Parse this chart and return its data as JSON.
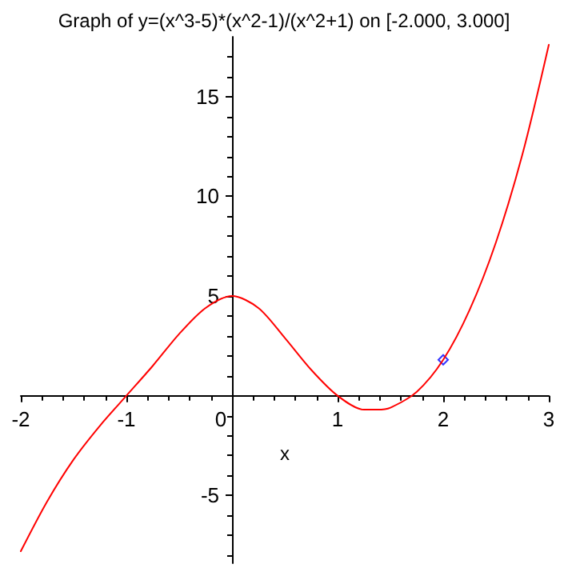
{
  "chart_data": {
    "type": "line",
    "title": "Graph of y=(x^3-5)*(x^2-1)/(x^2+1) on [-2.000, 3.000]",
    "xlabel": "x",
    "xlim": [
      -2,
      3
    ],
    "xticks": [
      -2,
      -1,
      0,
      1,
      2,
      3
    ],
    "ylim": [
      -8.4,
      18
    ],
    "yticks": [
      -5,
      5,
      10,
      15
    ],
    "marker": "none",
    "line_style": "solid",
    "series": [
      {
        "color": "#ff0000",
        "x": [
          -2,
          -1.75,
          -1.5,
          -1.25,
          -1,
          -0.75,
          -0.5,
          -0.25,
          0,
          0.25,
          0.5,
          0.75,
          1,
          1.25,
          1.375,
          1.5,
          1.75,
          2,
          2.25,
          2.5,
          2.75,
          3
        ],
        "values": [
          -7.8,
          -5.3,
          -3.2,
          -1.5,
          0,
          1.5,
          3.1,
          4.4,
          5,
          4.4,
          2.9,
          1.3,
          0,
          -0.7,
          -0.7,
          -0.6,
          0.2,
          1.8,
          4.3,
          7.7,
          12.1,
          17.6
        ]
      },
      {
        "type": "scatter",
        "marker": "diamond",
        "color": "#0000ff",
        "x": [
          2
        ],
        "values": [
          1.8
        ]
      }
    ]
  }
}
